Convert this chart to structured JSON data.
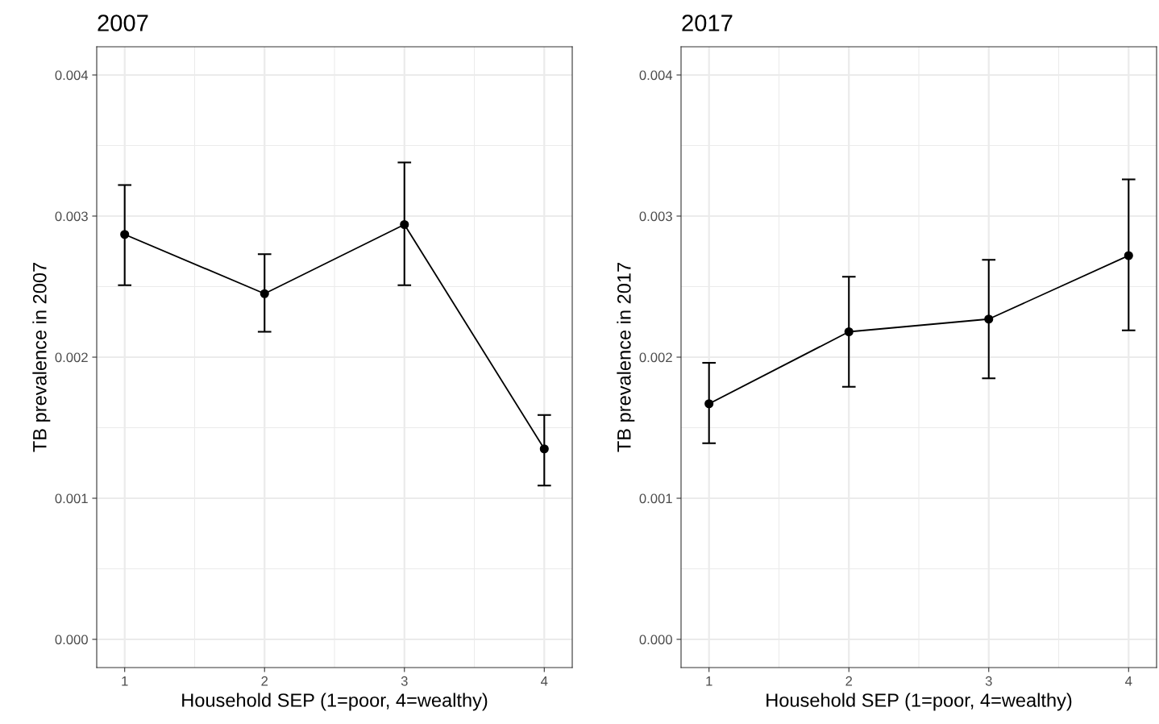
{
  "chart_data": [
    {
      "type": "line",
      "title": "2007",
      "xlabel": "Household SEP (1=poor, 4=wealthy)",
      "ylabel": "TB prevalence in 2007",
      "x": [
        1,
        2,
        3,
        4
      ],
      "series": [
        {
          "color": "#000000",
          "values": [
            0.00287,
            0.00245,
            0.00294,
            0.00135
          ],
          "errors": [
            [
              0.00251,
              0.00322
            ],
            [
              0.00218,
              0.00273
            ],
            [
              0.00251,
              0.00338
            ],
            [
              0.00109,
              0.00159
            ]
          ]
        }
      ],
      "xlim": [
        0.8,
        4.2
      ],
      "xticks": [
        1,
        2,
        3,
        4
      ],
      "ylim": [
        -0.0002,
        0.0042
      ],
      "yticks": [
        {
          "value": 0,
          "label": "0.000"
        },
        {
          "value": 0.001,
          "label": "0.001"
        },
        {
          "value": 0.002,
          "label": "0.002"
        },
        {
          "value": 0.003,
          "label": "0.003"
        },
        {
          "value": 0.004,
          "label": "0.004"
        }
      ],
      "grid": true,
      "marker": "circle",
      "line_style": "solid"
    },
    {
      "type": "line",
      "title": "2017",
      "xlabel": "Household SEP (1=poor, 4=wealthy)",
      "ylabel": "TB prevalence in 2017",
      "x": [
        1,
        2,
        3,
        4
      ],
      "series": [
        {
          "color": "#000000",
          "values": [
            0.00167,
            0.00218,
            0.00227,
            0.00272
          ],
          "errors": [
            [
              0.00139,
              0.00196
            ],
            [
              0.00179,
              0.00257
            ],
            [
              0.00185,
              0.00269
            ],
            [
              0.00219,
              0.00326
            ]
          ]
        }
      ],
      "xlim": [
        0.8,
        4.2
      ],
      "xticks": [
        1,
        2,
        3,
        4
      ],
      "ylim": [
        -0.0002,
        0.0042
      ],
      "yticks": [
        {
          "value": 0,
          "label": "0.000"
        },
        {
          "value": 0.001,
          "label": "0.001"
        },
        {
          "value": 0.002,
          "label": "0.002"
        },
        {
          "value": 0.003,
          "label": "0.003"
        },
        {
          "value": 0.004,
          "label": "0.004"
        }
      ],
      "grid": true,
      "marker": "circle",
      "line_style": "solid"
    }
  ]
}
